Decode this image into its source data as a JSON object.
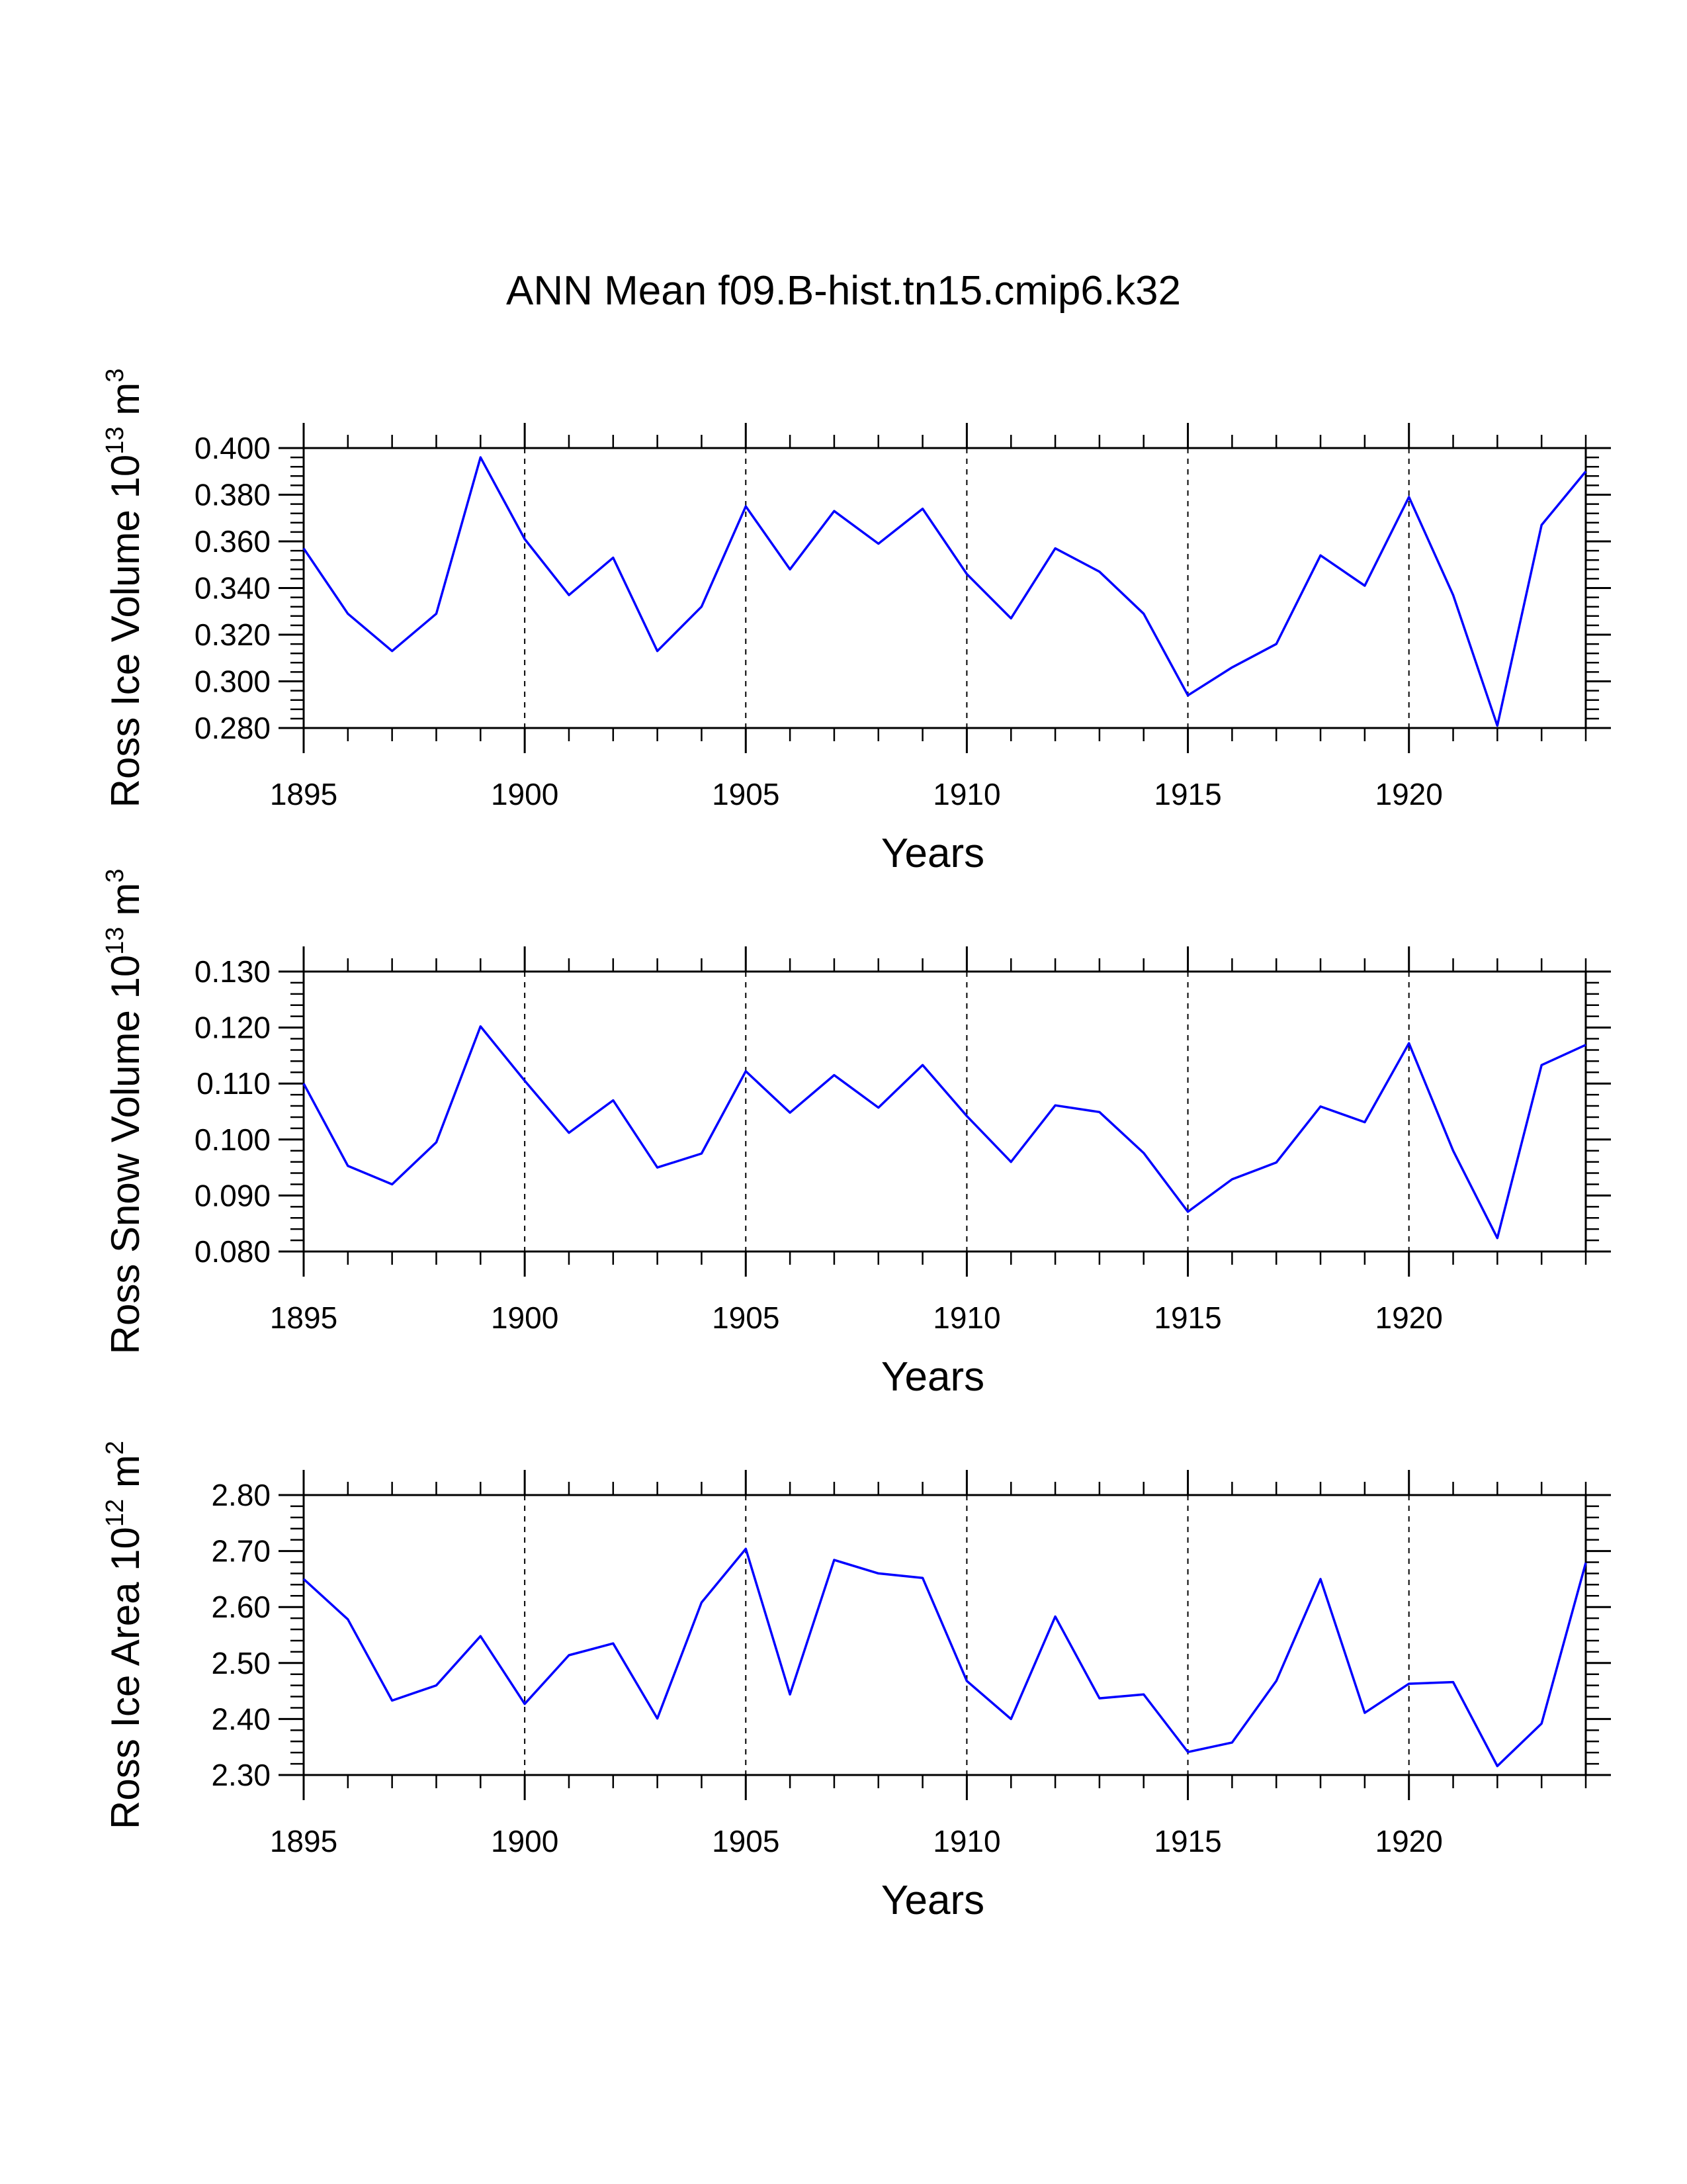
{
  "figure_title": "ANN Mean f09.B-hist.tn15.cmip6.k32",
  "chart_data": [
    {
      "type": "line",
      "title": "",
      "xlabel": "Years",
      "ylabel": {
        "lead": "Ross Ice Volume 10",
        "exp1": "13",
        "mid": " m",
        "exp2": "3"
      },
      "x": [
        1895,
        1896,
        1897,
        1898,
        1899,
        1900,
        1901,
        1902,
        1903,
        1904,
        1905,
        1906,
        1907,
        1908,
        1909,
        1910,
        1911,
        1912,
        1913,
        1914,
        1915,
        1916,
        1917,
        1918,
        1919,
        1920,
        1921,
        1922,
        1923,
        1924
      ],
      "series": [
        {
          "name": "Ross Ice Volume",
          "color": "#0000ff",
          "values": [
            0.357,
            0.329,
            0.313,
            0.329,
            0.396,
            0.361,
            0.337,
            0.353,
            0.313,
            0.332,
            0.375,
            0.348,
            0.373,
            0.359,
            0.374,
            0.346,
            0.327,
            0.357,
            0.347,
            0.329,
            0.294,
            0.306,
            0.316,
            0.354,
            0.341,
            0.379,
            0.337,
            0.281,
            0.367,
            0.39
          ]
        }
      ],
      "xlim": [
        1895,
        1924
      ],
      "ylim": [
        0.28,
        0.4
      ],
      "xticks": [
        1895,
        1900,
        1905,
        1910,
        1915,
        1920
      ],
      "yticks": [
        0.28,
        0.3,
        0.32,
        0.34,
        0.36,
        0.38,
        0.4
      ],
      "ytick_labels": [
        "0.280",
        "0.300",
        "0.320",
        "0.340",
        "0.360",
        "0.380",
        "0.400"
      ],
      "y_minor_step": 0.004,
      "dashed_grid_x": [
        1900,
        1905,
        1910,
        1915,
        1920
      ],
      "legend": "none"
    },
    {
      "type": "line",
      "title": "",
      "xlabel": "Years",
      "ylabel": {
        "lead": "Ross Snow Volume 10",
        "exp1": "13",
        "mid": " m",
        "exp2": "3"
      },
      "x": [
        1895,
        1896,
        1897,
        1898,
        1899,
        1900,
        1901,
        1902,
        1903,
        1904,
        1905,
        1906,
        1907,
        1908,
        1909,
        1910,
        1911,
        1912,
        1913,
        1914,
        1915,
        1916,
        1917,
        1918,
        1919,
        1920,
        1921,
        1922,
        1923,
        1924
      ],
      "series": [
        {
          "name": "Ross Snow Volume",
          "color": "#0000ff",
          "values": [
            0.11,
            0.0953,
            0.092,
            0.0995,
            0.1202,
            0.1105,
            0.1012,
            0.107,
            0.095,
            0.0975,
            0.1122,
            0.1048,
            0.1115,
            0.1057,
            0.1133,
            0.1042,
            0.096,
            0.1061,
            0.1049,
            0.0976,
            0.0871,
            0.0929,
            0.0959,
            0.1059,
            0.1031,
            0.1172,
            0.098,
            0.0824,
            0.1133,
            0.1169
          ]
        }
      ],
      "xlim": [
        1895,
        1924
      ],
      "ylim": [
        0.08,
        0.13
      ],
      "xticks": [
        1895,
        1900,
        1905,
        1910,
        1915,
        1920
      ],
      "yticks": [
        0.08,
        0.09,
        0.1,
        0.11,
        0.12,
        0.13
      ],
      "ytick_labels": [
        "0.080",
        "0.090",
        "0.100",
        "0.110",
        "0.120",
        "0.130"
      ],
      "y_minor_step": 0.002,
      "dashed_grid_x": [
        1900,
        1905,
        1910,
        1915,
        1920
      ],
      "legend": "none"
    },
    {
      "type": "line",
      "title": "",
      "xlabel": "Years",
      "ylabel": {
        "lead": "Ross Ice Area 10",
        "exp1": "12",
        "mid": " m",
        "exp2": "2"
      },
      "x": [
        1895,
        1896,
        1897,
        1898,
        1899,
        1900,
        1901,
        1902,
        1903,
        1904,
        1905,
        1906,
        1907,
        1908,
        1909,
        1910,
        1911,
        1912,
        1913,
        1914,
        1915,
        1916,
        1917,
        1918,
        1919,
        1920,
        1921,
        1922,
        1923,
        1924
      ],
      "series": [
        {
          "name": "Ross Ice Area",
          "color": "#0000ff",
          "values": [
            2.65,
            2.578,
            2.433,
            2.46,
            2.548,
            2.427,
            2.514,
            2.535,
            2.401,
            2.608,
            2.704,
            2.444,
            2.684,
            2.66,
            2.652,
            2.468,
            2.4,
            2.583,
            2.437,
            2.444,
            2.341,
            2.358,
            2.468,
            2.65,
            2.411,
            2.463,
            2.466,
            2.316,
            2.392,
            2.679
          ]
        }
      ],
      "xlim": [
        1895,
        1924
      ],
      "ylim": [
        2.3,
        2.8
      ],
      "xticks": [
        1895,
        1900,
        1905,
        1910,
        1915,
        1920
      ],
      "yticks": [
        2.3,
        2.4,
        2.5,
        2.6,
        2.7,
        2.8
      ],
      "ytick_labels": [
        "2.30",
        "2.40",
        "2.50",
        "2.60",
        "2.70",
        "2.80"
      ],
      "y_minor_step": 0.02,
      "dashed_grid_x": [
        1900,
        1905,
        1910,
        1915,
        1920
      ],
      "legend": "none"
    }
  ]
}
